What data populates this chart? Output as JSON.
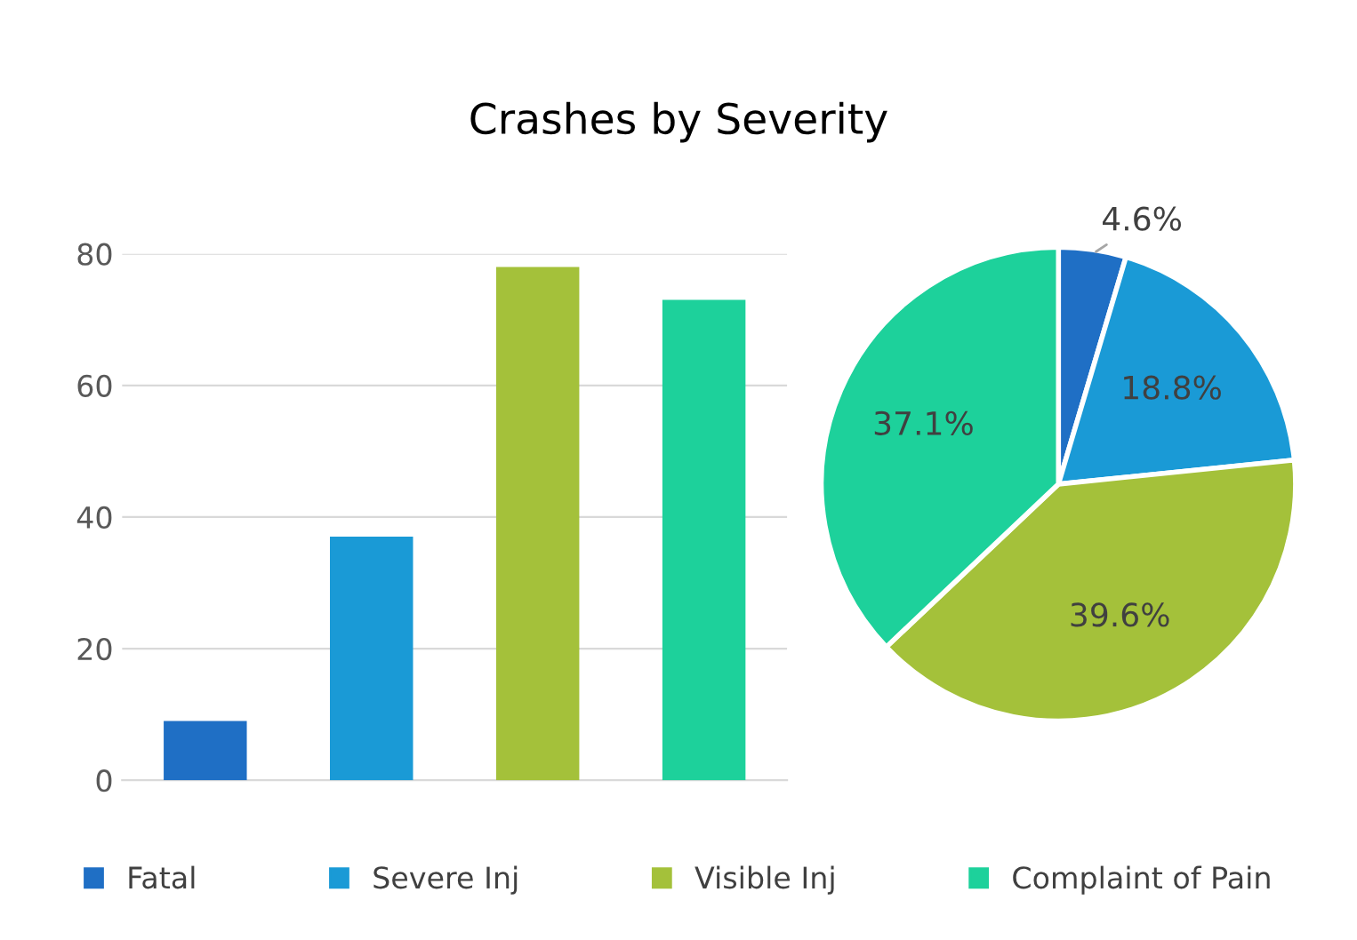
{
  "chart_data": [
    {
      "type": "bar",
      "title": "Crashes by Severity",
      "categories": [
        null,
        null,
        null,
        null
      ],
      "values": [
        9,
        37,
        78,
        73
      ],
      "colors": [
        "#1f6fc5",
        "#1a9ad6",
        "#a4c13a",
        "#1dd19b"
      ],
      "ylim": [
        0,
        80
      ],
      "yticks": [
        0,
        20,
        40,
        60,
        80
      ],
      "grid": "y"
    },
    {
      "type": "pie",
      "categories": [
        "Fatal",
        "Severe Inj",
        "Visible Inj",
        "Complaint of Pain"
      ],
      "values": [
        4.6,
        18.8,
        39.6,
        37.1
      ],
      "colors": [
        "#1f6fc5",
        "#1a9ad6",
        "#a4c13a",
        "#1dd19b"
      ],
      "value_labels": [
        "4.6%",
        "18.8%",
        "39.6%",
        "37.1%"
      ],
      "legend": "bottom"
    }
  ]
}
